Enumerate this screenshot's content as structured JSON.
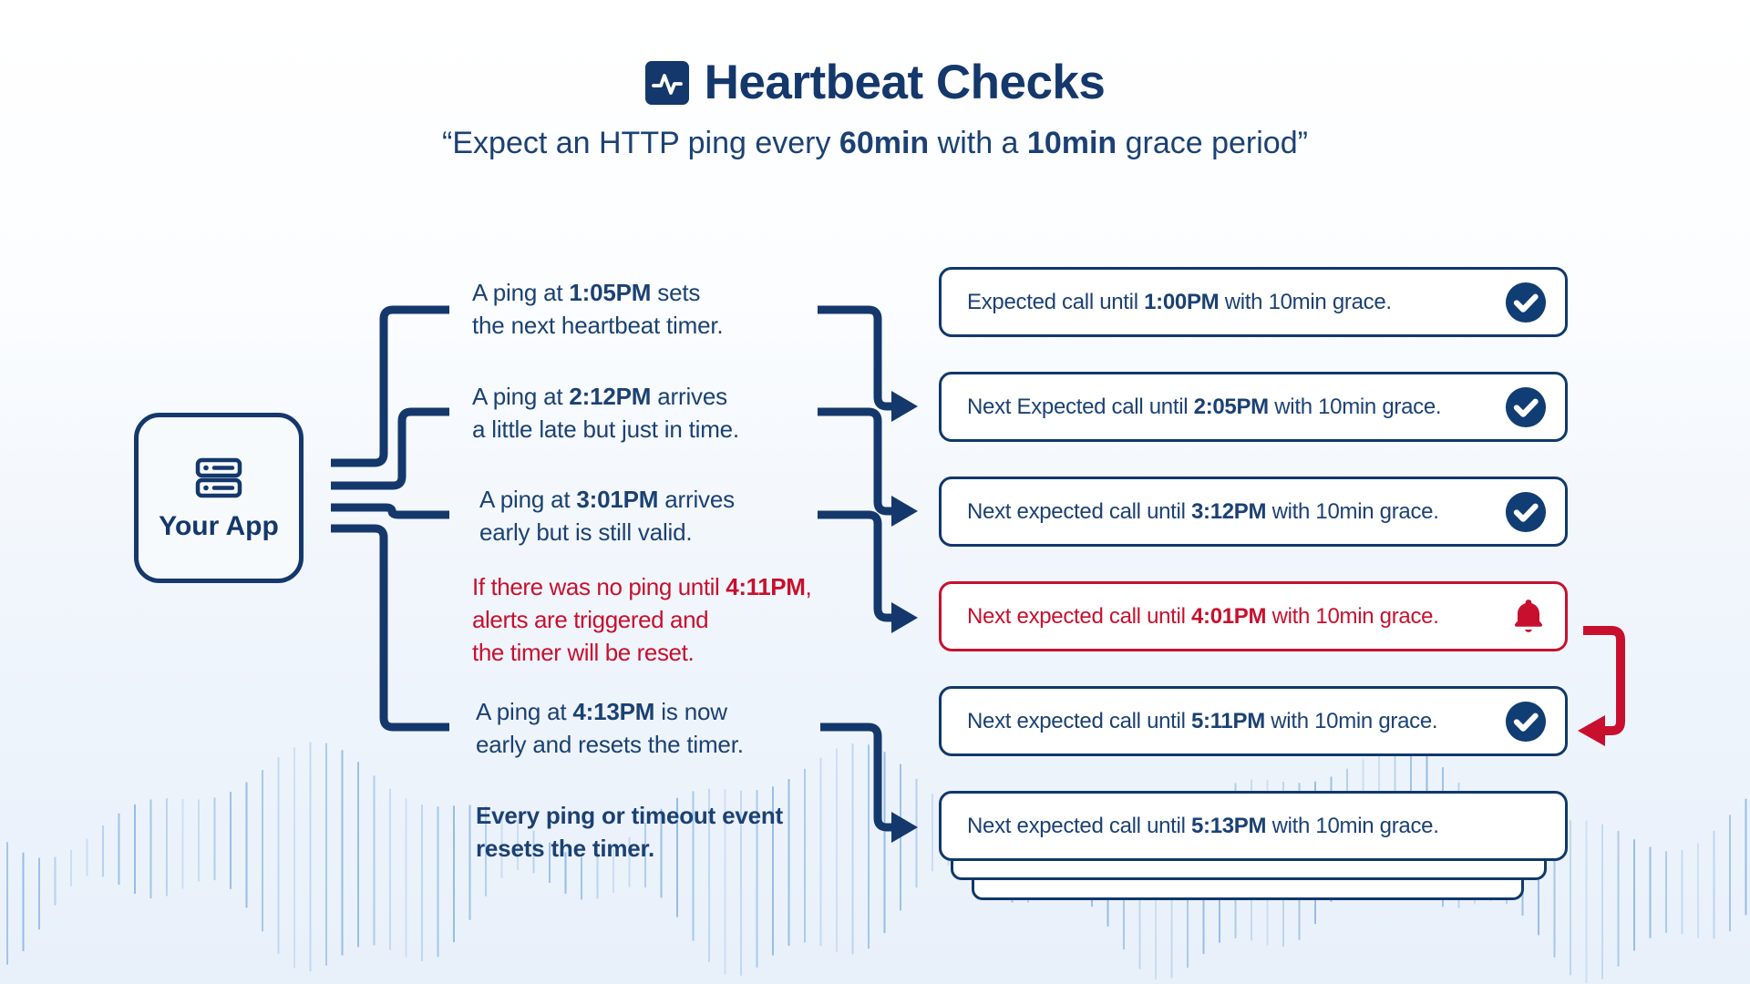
{
  "header": {
    "title": "Heartbeat Checks",
    "title_icon": "pulse-icon",
    "subtitle_parts": [
      {
        "t": "“Expect an HTTP ping every "
      },
      {
        "t": "60min",
        "bold": true
      },
      {
        "t": " with a "
      },
      {
        "t": "10min",
        "bold": true
      },
      {
        "t": " grace period”"
      }
    ]
  },
  "app_node": {
    "label": "Your App",
    "icon": "server-icon"
  },
  "annotations": [
    {
      "id": "ping-105",
      "variant": "normal",
      "lines": [
        [
          {
            "t": "A ping at "
          },
          {
            "t": "1:05PM",
            "bold": true
          },
          {
            "t": " sets"
          }
        ],
        [
          {
            "t": "the next heartbeat timer."
          }
        ]
      ]
    },
    {
      "id": "ping-212",
      "variant": "normal",
      "lines": [
        [
          {
            "t": "A ping at "
          },
          {
            "t": "2:12PM",
            "bold": true
          },
          {
            "t": " arrives"
          }
        ],
        [
          {
            "t": "a little late but just in time."
          }
        ]
      ]
    },
    {
      "id": "ping-301",
      "variant": "normal",
      "lines": [
        [
          {
            "t": "A ping at "
          },
          {
            "t": "3:01PM",
            "bold": true
          },
          {
            "t": " arrives"
          }
        ],
        [
          {
            "t": "early but is still valid."
          }
        ]
      ]
    },
    {
      "id": "timeout-411",
      "variant": "alert",
      "lines": [
        [
          {
            "t": "If there was no ping until "
          },
          {
            "t": "4:11PM",
            "bold": true
          },
          {
            "t": ","
          }
        ],
        [
          {
            "t": "alerts are triggered and"
          }
        ],
        [
          {
            "t": "the timer will be reset."
          }
        ]
      ]
    },
    {
      "id": "ping-413",
      "variant": "normal",
      "lines": [
        [
          {
            "t": "A ping at "
          },
          {
            "t": "4:13PM",
            "bold": true
          },
          {
            "t": " is now"
          }
        ],
        [
          {
            "t": "early and resets the timer."
          }
        ]
      ]
    },
    {
      "id": "summary",
      "variant": "bold",
      "lines": [
        [
          {
            "t": "Every ping or timeout event",
            "bold": true
          }
        ],
        [
          {
            "t": "resets the timer.",
            "bold": true
          }
        ]
      ]
    }
  ],
  "events": [
    {
      "id": "event-1",
      "variant": "ok",
      "icon": "check",
      "parts": [
        {
          "t": "Expected call until "
        },
        {
          "t": "1:00PM",
          "bold": true
        },
        {
          "t": " with 10min grace."
        }
      ]
    },
    {
      "id": "event-2",
      "variant": "ok",
      "icon": "check",
      "parts": [
        {
          "t": "Next Expected call until "
        },
        {
          "t": "2:05PM",
          "bold": true
        },
        {
          "t": " with 10min grace."
        }
      ]
    },
    {
      "id": "event-3",
      "variant": "ok",
      "icon": "check",
      "parts": [
        {
          "t": "Next expected call until "
        },
        {
          "t": "3:12PM",
          "bold": true
        },
        {
          "t": " with 10min grace."
        }
      ]
    },
    {
      "id": "event-4",
      "variant": "alert",
      "icon": "bell",
      "parts": [
        {
          "t": "Next expected call until "
        },
        {
          "t": "4:01PM",
          "bold": true
        },
        {
          "t": " with 10min grace."
        }
      ]
    },
    {
      "id": "event-5",
      "variant": "ok",
      "icon": "check",
      "parts": [
        {
          "t": "Next expected call until "
        },
        {
          "t": "5:11PM",
          "bold": true
        },
        {
          "t": " with 10min grace."
        }
      ]
    },
    {
      "id": "event-6",
      "variant": "ok",
      "icon": null,
      "parts": [
        {
          "t": "Next expected call until "
        },
        {
          "t": "5:13PM",
          "bold": true
        },
        {
          "t": " with 10min grace."
        }
      ]
    }
  ],
  "colors": {
    "navy": "#14386b",
    "text_navy": "#1b4173",
    "box_border": "#10386b",
    "red": "#c8102e",
    "icon_circle": "#103d73",
    "waveform": "#79ace0",
    "background_top": "#ffffff",
    "background_bottom": "#e8f0fa"
  }
}
